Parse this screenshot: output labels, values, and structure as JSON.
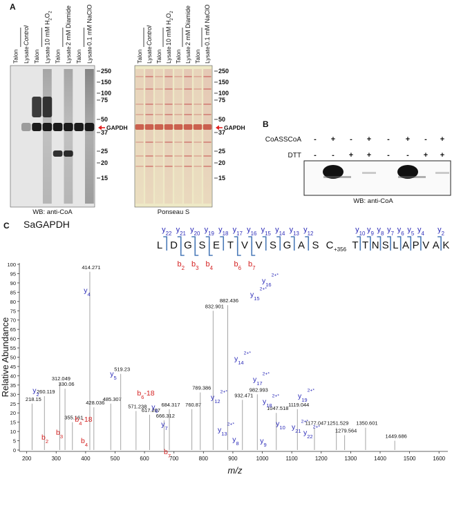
{
  "panel_a": {
    "label": "A",
    "treatments": [
      [
        "Control"
      ],
      [
        "10 mM H",
        "2",
        "O",
        "2"
      ],
      [
        "2 mM Diamide"
      ],
      [
        "0.1 mM NaClO"
      ]
    ],
    "lanes": [
      "Talon",
      "Lysate"
    ],
    "markers": [
      250,
      150,
      100,
      75,
      50,
      37,
      25,
      20,
      15
    ],
    "band": "GAPDH",
    "blots": [
      {
        "caption": "WB: anti-CoA"
      },
      {
        "caption": "Ponseau S"
      }
    ]
  },
  "panel_b": {
    "label": "B",
    "rows": [
      {
        "name": "CoASSCoA",
        "signs": [
          "-",
          "+",
          "-",
          "+",
          "-",
          "+",
          "-",
          "+"
        ]
      },
      {
        "name": "DTT",
        "signs": [
          "-",
          "-",
          "+",
          "+",
          "-",
          "-",
          "+",
          "+"
        ]
      }
    ],
    "caption": "WB: anti-CoA"
  },
  "panel_c": {
    "label": "C",
    "title": "SaGAPDH",
    "peptide": {
      "residues_n": [
        "L",
        "D",
        "G",
        "S",
        "E",
        "T",
        "V",
        "V",
        "S",
        "G",
        "A",
        "S",
        "C"
      ],
      "modification": "+356",
      "residues_c": [
        "T",
        "T",
        "N",
        "S",
        "L",
        "A",
        "P",
        "V",
        "A",
        "K"
      ],
      "top_n": [
        {
          "ion": "y",
          "number": "22"
        },
        {
          "ion": "y",
          "number": "21"
        },
        {
          "ion": "y",
          "number": "20"
        },
        {
          "ion": "y",
          "number": "19"
        },
        {
          "ion": "y",
          "number": "18"
        },
        {
          "ion": "y",
          "number": "17"
        },
        {
          "ion": "y",
          "number": "16"
        },
        {
          "ion": "y",
          "number": "15"
        },
        {
          "ion": "y",
          "number": "14"
        },
        {
          "ion": "y",
          "number": "13"
        },
        {
          "ion": "y",
          "number": "12"
        }
      ],
      "top_c": [
        {
          "ion": "y",
          "number": "10"
        },
        {
          "ion": "y",
          "number": "9"
        },
        {
          "ion": "y",
          "number": "8"
        },
        {
          "ion": "y",
          "number": "7"
        },
        {
          "ion": "y",
          "number": "6"
        },
        {
          "ion": "y",
          "number": "5"
        },
        {
          "ion": "y",
          "number": "4"
        },
        {
          "ion": "y",
          "number": "2"
        }
      ],
      "bottom": [
        {
          "ion": "b",
          "number": "2"
        },
        {
          "ion": "b",
          "number": "3"
        },
        {
          "ion": "b",
          "number": "4"
        },
        {
          "ion": "b",
          "number": "6"
        },
        {
          "ion": "b",
          "number": "7"
        }
      ]
    },
    "spectrum": {
      "xlabel": "m/z",
      "ylabel": "Relative Abundance",
      "xlim": [
        175,
        1630
      ],
      "xticks": [
        200,
        300,
        400,
        500,
        600,
        700,
        800,
        900,
        1000,
        1100,
        1200,
        1300,
        1400,
        1500,
        1600
      ],
      "ylim": [
        0,
        100
      ],
      "yticks": [
        0,
        5,
        10,
        15,
        20,
        25,
        30,
        35,
        40,
        45,
        50,
        55,
        60,
        65,
        70,
        75,
        80,
        85,
        90,
        95,
        100
      ],
      "peaks": [
        {
          "mz": 218.15,
          "intensity": 25
        },
        {
          "mz": 260.119,
          "intensity": 29
        },
        {
          "mz": 312.049,
          "intensity": 36
        },
        {
          "mz": 330.06,
          "intensity": 33
        },
        {
          "mz": 355.161,
          "intensity": 15
        },
        {
          "mz": 414.271,
          "intensity": 96
        },
        {
          "mz": 428.036,
          "intensity": 23
        },
        {
          "mz": 485.307,
          "intensity": 25
        },
        {
          "mz": 519.23,
          "intensity": 41
        },
        {
          "mz": 571.238,
          "intensity": 21
        },
        {
          "mz": 617.207,
          "intensity": 19
        },
        {
          "mz": 666.312,
          "intensity": 16
        },
        {
          "mz": 684.317,
          "intensity": 22
        },
        {
          "mz": 760.87,
          "intensity": 22
        },
        {
          "mz": 789.386,
          "intensity": 31
        },
        {
          "mz": 832.901,
          "intensity": 75
        },
        {
          "mz": 882.436,
          "intensity": 78
        },
        {
          "mz": 932.471,
          "intensity": 27
        },
        {
          "mz": 982.993,
          "intensity": 30
        },
        {
          "mz": 1047.518,
          "intensity": 20
        },
        {
          "mz": 1119.044,
          "intensity": 22
        },
        {
          "mz": 1177.047,
          "intensity": 12
        },
        {
          "mz": 1251.529,
          "intensity": 12
        },
        {
          "mz": 1279.564,
          "intensity": 8
        },
        {
          "mz": 1350.601,
          "intensity": 12
        },
        {
          "mz": 1449.686,
          "intensity": 5
        }
      ],
      "ions": [
        {
          "ion": "y",
          "number": "4"
        },
        {
          "ion": "y",
          "number": "16",
          "charge": "2+*"
        },
        {
          "ion": "y",
          "number": "15",
          "charge": "2+*"
        },
        {
          "ion": "y",
          "number": "14",
          "charge": "2+*"
        },
        {
          "ion": "y",
          "number": "5"
        },
        {
          "ion": "y",
          "number": "17",
          "charge": "2+*"
        },
        {
          "ion": "y",
          "number": "12",
          "charge": "2+*"
        },
        {
          "ion": "b",
          "number": "6",
          "suffix": "-18"
        },
        {
          "ion": "y",
          "number": "6"
        },
        {
          "ion": "y",
          "number": "18",
          "charge": "2+*"
        },
        {
          "ion": "y",
          "number": "19",
          "charge": "2+*"
        },
        {
          "ion": "y",
          "number": "2"
        },
        {
          "ion": "b",
          "number": "4",
          "suffix": "-18"
        },
        {
          "ion": "y",
          "number": "7"
        },
        {
          "ion": "y",
          "number": "10"
        },
        {
          "ion": "y",
          "number": "13",
          "charge": "2+*"
        },
        {
          "ion": "y",
          "number": "21",
          "charge": "2+*"
        },
        {
          "ion": "y",
          "number": "22",
          "charge": "2+*"
        },
        {
          "ion": "b",
          "number": "3"
        },
        {
          "ion": "b",
          "number": "2"
        },
        {
          "ion": "b",
          "number": "4"
        },
        {
          "ion": "y",
          "number": "8"
        },
        {
          "ion": "y",
          "number": "9"
        },
        {
          "ion": "b",
          "number": "7"
        }
      ],
      "colors": {
        "y": "#2b2bb8",
        "b": "#d42020",
        "peak": "#9a9a9a"
      }
    }
  }
}
